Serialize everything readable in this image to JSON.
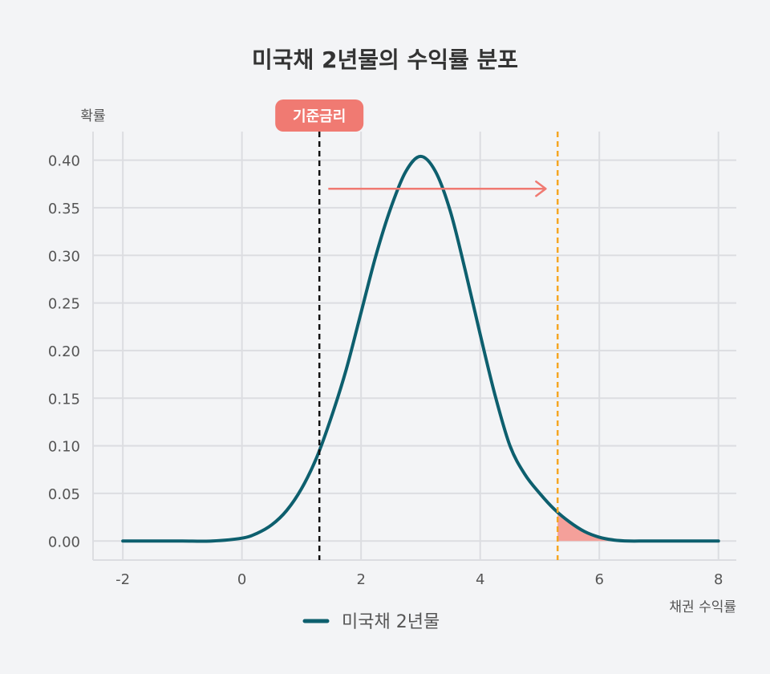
{
  "colors": {
    "background": "#f3f4f6",
    "grid": "#dcdde1",
    "curve": "#0d5f6e",
    "threshold_line": "#111111",
    "comparison_line": "#f5a623",
    "arrow": "#f07a72",
    "tail_fill": "#f4a09a",
    "badge": "#f07a72",
    "badge_text": "#ffffff",
    "title_text": "#333333",
    "label_text": "#555555"
  },
  "chart_data": {
    "type": "line",
    "title": "미국채 2년물의 수익률 분포",
    "xlabel": "채권 수익률",
    "ylabel": "확률",
    "xlim": [
      -2.5,
      8.3
    ],
    "ylim": [
      -0.02,
      0.43
    ],
    "x_ticks": [
      -2,
      0,
      2,
      4,
      6,
      8
    ],
    "x_tick_labels": [
      "-2",
      "0",
      "2",
      "4",
      "6",
      "8"
    ],
    "y_ticks": [
      0.0,
      0.05,
      0.1,
      0.15,
      0.2,
      0.25,
      0.3,
      0.35,
      0.4
    ],
    "y_tick_labels": [
      "0.00",
      "0.05",
      "0.10",
      "0.15",
      "0.20",
      "0.25",
      "0.30",
      "0.35",
      "0.40"
    ],
    "grid": true,
    "legend": {
      "position": "bottom-center",
      "entries": [
        "미국채 2년물"
      ]
    },
    "series": [
      {
        "name": "미국채 2년물",
        "x": [
          -2,
          -1.5,
          -1,
          -0.5,
          0,
          0.25,
          0.5,
          0.75,
          1.0,
          1.25,
          1.5,
          1.75,
          2.0,
          2.25,
          2.5,
          2.75,
          3.0,
          3.25,
          3.5,
          3.75,
          4.0,
          4.25,
          4.5,
          4.75,
          5.0,
          5.25,
          5.5,
          5.75,
          6.0,
          6.25,
          6.5,
          6.75,
          7,
          7.5,
          8
        ],
        "y": [
          0.0,
          0.0,
          0.0,
          0.0,
          0.003,
          0.008,
          0.017,
          0.032,
          0.055,
          0.087,
          0.13,
          0.18,
          0.24,
          0.3,
          0.35,
          0.388,
          0.404,
          0.388,
          0.346,
          0.284,
          0.217,
          0.153,
          0.1,
          0.07,
          0.05,
          0.033,
          0.02,
          0.01,
          0.004,
          0.001,
          0.0,
          0.0,
          0.0,
          0.0,
          0.0
        ]
      }
    ],
    "annotations": {
      "base_rate": {
        "label": "기준금리",
        "x": 1.3
      },
      "comparison_x": 5.3,
      "arrow": {
        "from_x": 1.45,
        "to_x": 5.1,
        "y": 0.37
      },
      "shaded_tail_from_x": 5.3
    }
  }
}
